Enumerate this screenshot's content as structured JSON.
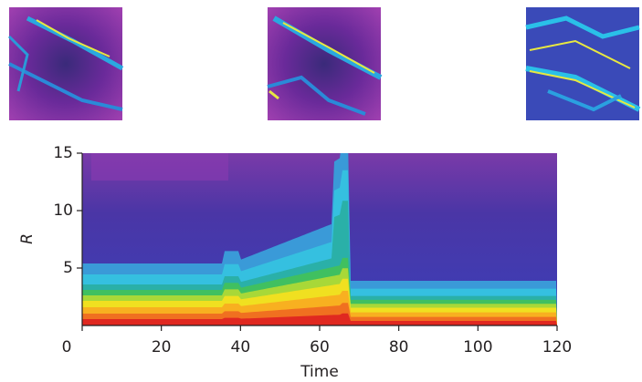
{
  "chart_data": {
    "type": "heatmap",
    "xlabel": "Time",
    "ylabel": "R",
    "xlim": [
      0,
      120
    ],
    "xticks": [
      0,
      20,
      40,
      60,
      80,
      100,
      120
    ],
    "ylim": [
      0,
      15
    ],
    "yticks": [
      5,
      10,
      15
    ]
  }
}
